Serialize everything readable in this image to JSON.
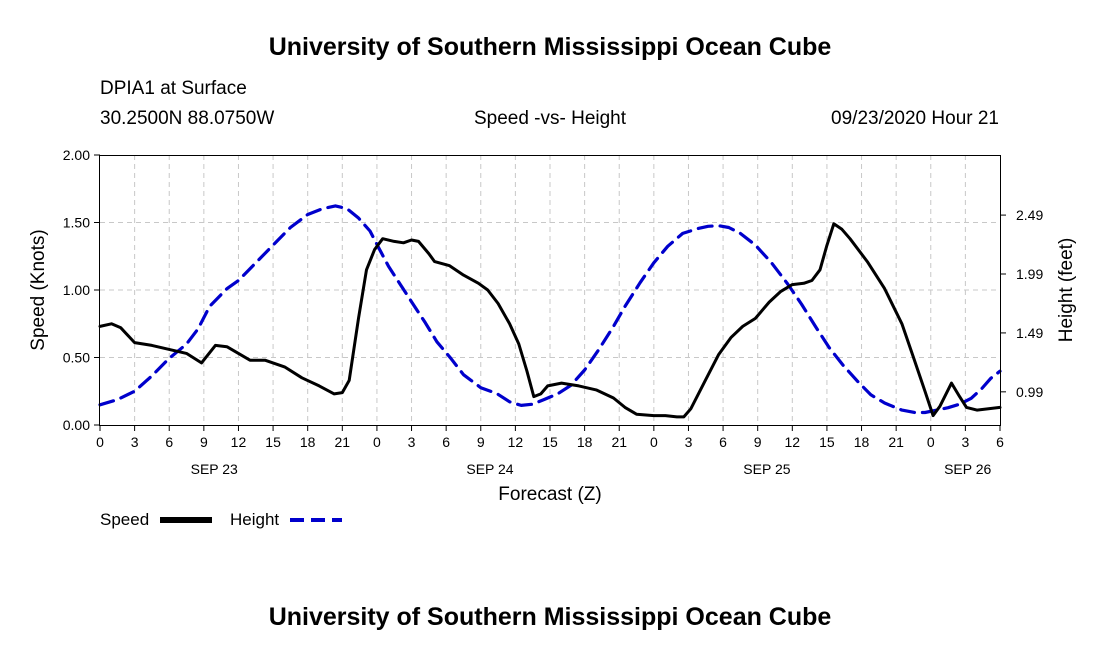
{
  "page": {
    "title_top": "University of Southern Mississippi Ocean Cube",
    "title_bottom": "University of Southern Mississippi Ocean Cube",
    "station": "DPIA1 at Surface",
    "coords": "30.2500N 88.0750W",
    "date": "09/23/2020 Hour 21"
  },
  "colors": {
    "speed": "#000000",
    "height": "#0000cc",
    "grid": "#c8c8c8"
  },
  "chart_data": {
    "type": "line",
    "title": "Speed -vs- Height",
    "xlabel": "Forecast (Z)",
    "ylabel": "Speed (Knots)",
    "y2label": "Height (feet)",
    "x_range": [
      0,
      78
    ],
    "ylim": [
      0,
      2
    ],
    "y2lim": [
      0.7085,
      3.0
    ],
    "x_ticks": [
      {
        "x": 0,
        "label": "0"
      },
      {
        "x": 3,
        "label": "3"
      },
      {
        "x": 6,
        "label": "6"
      },
      {
        "x": 9,
        "label": "9"
      },
      {
        "x": 12,
        "label": "12"
      },
      {
        "x": 15,
        "label": "15"
      },
      {
        "x": 18,
        "label": "18"
      },
      {
        "x": 21,
        "label": "21"
      },
      {
        "x": 24,
        "label": "0"
      },
      {
        "x": 27,
        "label": "3"
      },
      {
        "x": 30,
        "label": "6"
      },
      {
        "x": 33,
        "label": "9"
      },
      {
        "x": 36,
        "label": "12"
      },
      {
        "x": 39,
        "label": "15"
      },
      {
        "x": 42,
        "label": "18"
      },
      {
        "x": 45,
        "label": "21"
      },
      {
        "x": 48,
        "label": "0"
      },
      {
        "x": 51,
        "label": "3"
      },
      {
        "x": 54,
        "label": "6"
      },
      {
        "x": 57,
        "label": "9"
      },
      {
        "x": 60,
        "label": "12"
      },
      {
        "x": 63,
        "label": "15"
      },
      {
        "x": 66,
        "label": "18"
      },
      {
        "x": 69,
        "label": "21"
      },
      {
        "x": 72,
        "label": "0"
      },
      {
        "x": 75,
        "label": "3"
      },
      {
        "x": 78,
        "label": "6"
      }
    ],
    "day_labels": [
      {
        "x": 9.9,
        "label": "SEP 23"
      },
      {
        "x": 33.8,
        "label": "SEP 24"
      },
      {
        "x": 57.8,
        "label": "SEP 25"
      },
      {
        "x": 75.2,
        "label": "SEP 26"
      }
    ],
    "y_ticks": [
      "0.00",
      "0.50",
      "1.00",
      "1.50",
      "2.00"
    ],
    "y_tick_values": [
      0,
      0.5,
      1.0,
      1.5,
      2.0
    ],
    "y2_ticks": [
      "0.99",
      "1.49",
      "1.99",
      "2.49"
    ],
    "y2_tick_values": [
      0.99,
      1.49,
      1.99,
      2.49
    ],
    "series": [
      {
        "name": "Speed",
        "axis": "left",
        "style": "solid",
        "points": [
          [
            0,
            0.73
          ],
          [
            1,
            0.75
          ],
          [
            1.8,
            0.72
          ],
          [
            3,
            0.61
          ],
          [
            4.5,
            0.59
          ],
          [
            6,
            0.56
          ],
          [
            7.5,
            0.53
          ],
          [
            8.8,
            0.46
          ],
          [
            10,
            0.59
          ],
          [
            11,
            0.58
          ],
          [
            13,
            0.48
          ],
          [
            14.3,
            0.48
          ],
          [
            16,
            0.43
          ],
          [
            17.5,
            0.35
          ],
          [
            19,
            0.29
          ],
          [
            20.3,
            0.23
          ],
          [
            21,
            0.24
          ],
          [
            21.6,
            0.33
          ],
          [
            22.4,
            0.79
          ],
          [
            23.1,
            1.15
          ],
          [
            23.8,
            1.3
          ],
          [
            24.5,
            1.38
          ],
          [
            25.5,
            1.36
          ],
          [
            26.3,
            1.35
          ],
          [
            27,
            1.37
          ],
          [
            27.6,
            1.36
          ],
          [
            28.5,
            1.27
          ],
          [
            29,
            1.21
          ],
          [
            30.3,
            1.18
          ],
          [
            31.5,
            1.11
          ],
          [
            32.8,
            1.05
          ],
          [
            33.6,
            1.0
          ],
          [
            34.5,
            0.9
          ],
          [
            35.5,
            0.75
          ],
          [
            36.3,
            0.6
          ],
          [
            37,
            0.4
          ],
          [
            37.6,
            0.21
          ],
          [
            38.2,
            0.23
          ],
          [
            38.8,
            0.29
          ],
          [
            40,
            0.31
          ],
          [
            41.5,
            0.29
          ],
          [
            43,
            0.26
          ],
          [
            44.5,
            0.2
          ],
          [
            45.5,
            0.13
          ],
          [
            46.5,
            0.08
          ],
          [
            48,
            0.07
          ],
          [
            49,
            0.07
          ],
          [
            50,
            0.06
          ],
          [
            50.6,
            0.06
          ],
          [
            51.2,
            0.12
          ],
          [
            52.4,
            0.32
          ],
          [
            53.6,
            0.52
          ],
          [
            54.7,
            0.65
          ],
          [
            55.7,
            0.73
          ],
          [
            56.8,
            0.79
          ],
          [
            58,
            0.91
          ],
          [
            59,
            0.99
          ],
          [
            60,
            1.04
          ],
          [
            61,
            1.05
          ],
          [
            61.7,
            1.07
          ],
          [
            62.4,
            1.15
          ],
          [
            63,
            1.33
          ],
          [
            63.6,
            1.49
          ],
          [
            64.3,
            1.45
          ],
          [
            65,
            1.38
          ],
          [
            66.5,
            1.21
          ],
          [
            68,
            1.01
          ],
          [
            69.5,
            0.75
          ],
          [
            70.5,
            0.5
          ],
          [
            71.5,
            0.25
          ],
          [
            72.2,
            0.07
          ],
          [
            72.8,
            0.14
          ],
          [
            73.8,
            0.31
          ],
          [
            74.5,
            0.21
          ],
          [
            75.1,
            0.13
          ],
          [
            76,
            0.11
          ],
          [
            77,
            0.12
          ],
          [
            78,
            0.13
          ]
        ]
      },
      {
        "name": "Height",
        "axis": "right",
        "style": "dashed",
        "points": [
          [
            0,
            0.88
          ],
          [
            1.5,
            0.923
          ],
          [
            3,
            0.995
          ],
          [
            4.5,
            1.125
          ],
          [
            6,
            1.275
          ],
          [
            7.5,
            1.395
          ],
          [
            8.5,
            1.525
          ],
          [
            9.5,
            1.715
          ],
          [
            11,
            1.865
          ],
          [
            12,
            1.935
          ],
          [
            13.5,
            2.085
          ],
          [
            15,
            2.235
          ],
          [
            16.5,
            2.385
          ],
          [
            18,
            2.495
          ],
          [
            19.3,
            2.545
          ],
          [
            20.4,
            2.568
          ],
          [
            21.4,
            2.545
          ],
          [
            22.4,
            2.465
          ],
          [
            23.4,
            2.355
          ],
          [
            24.2,
            2.205
          ],
          [
            25,
            2.055
          ],
          [
            26,
            1.905
          ],
          [
            27,
            1.755
          ],
          [
            28.2,
            1.575
          ],
          [
            29.2,
            1.415
          ],
          [
            30.4,
            1.275
          ],
          [
            31.5,
            1.135
          ],
          [
            33,
            1.025
          ],
          [
            34.4,
            0.975
          ],
          [
            35.5,
            0.905
          ],
          [
            36.5,
            0.875
          ],
          [
            37.5,
            0.885
          ],
          [
            38.5,
            0.925
          ],
          [
            39.7,
            0.975
          ],
          [
            40.8,
            1.045
          ],
          [
            42,
            1.175
          ],
          [
            43.2,
            1.345
          ],
          [
            44.5,
            1.545
          ],
          [
            45.5,
            1.715
          ],
          [
            46.8,
            1.915
          ],
          [
            48,
            2.085
          ],
          [
            49.2,
            2.225
          ],
          [
            50.5,
            2.335
          ],
          [
            51.8,
            2.375
          ],
          [
            52.7,
            2.395
          ],
          [
            53.6,
            2.4
          ],
          [
            54.5,
            2.385
          ],
          [
            55.5,
            2.335
          ],
          [
            56.8,
            2.235
          ],
          [
            58.2,
            2.085
          ],
          [
            59.6,
            1.905
          ],
          [
            60.8,
            1.735
          ],
          [
            62,
            1.545
          ],
          [
            63.2,
            1.365
          ],
          [
            64.4,
            1.215
          ],
          [
            65.6,
            1.085
          ],
          [
            66.8,
            0.965
          ],
          [
            68,
            0.895
          ],
          [
            69.5,
            0.835
          ],
          [
            70.6,
            0.815
          ],
          [
            71.5,
            0.815
          ],
          [
            72.5,
            0.835
          ],
          [
            73.5,
            0.855
          ],
          [
            74.5,
            0.885
          ],
          [
            75.5,
            0.935
          ],
          [
            76.4,
            1.015
          ],
          [
            77.2,
            1.105
          ],
          [
            78,
            1.165
          ]
        ]
      }
    ],
    "legend": {
      "position": "bottom-left",
      "items": [
        {
          "label": "Speed",
          "style": "solid"
        },
        {
          "label": "Height",
          "style": "dashed"
        }
      ]
    }
  }
}
